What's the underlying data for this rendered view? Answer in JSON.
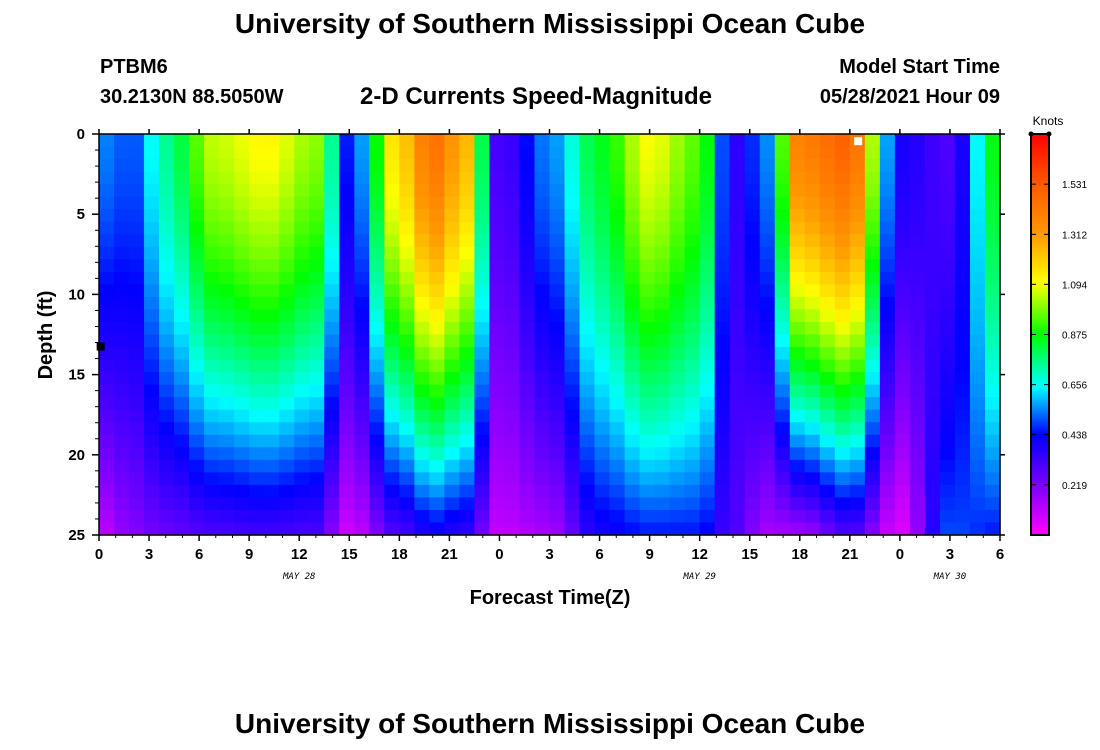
{
  "header": {
    "title": "University of Southern Mississippi Ocean Cube",
    "station": "PTBM6",
    "coords": "30.2130N  88.5050W",
    "subtitle": "2-D Currents Speed-Magnitude",
    "model_label": "Model Start Time",
    "model_time": "05/28/2021 Hour 09"
  },
  "footer": {
    "title": "University of Southern Mississippi Ocean Cube"
  },
  "chart_data": {
    "type": "heatmap",
    "title": "2-D Currents Speed-Magnitude",
    "xlabel": "Forecast Time(Z)",
    "ylabel": "Depth (ft)",
    "x_range": [
      0,
      54
    ],
    "y_range": [
      0,
      25
    ],
    "x_ticks": [
      0,
      3,
      6,
      9,
      12,
      15,
      18,
      21,
      24,
      27,
      30,
      33,
      36,
      39,
      42,
      45,
      48,
      51,
      54
    ],
    "x_tick_labels": [
      "0",
      "3",
      "6",
      "9",
      "12",
      "15",
      "18",
      "21",
      "0",
      "3",
      "6",
      "9",
      "12",
      "15",
      "18",
      "21",
      "0",
      "3",
      "6"
    ],
    "y_ticks": [
      0,
      5,
      10,
      15,
      20,
      25
    ],
    "y_tick_labels": [
      "0",
      "5",
      "10",
      "15",
      "20",
      "25"
    ],
    "date_labels": [
      {
        "x": 12,
        "label": "MAY 28"
      },
      {
        "x": 36,
        "label": "MAY 29"
      },
      {
        "x": 51,
        "label": "MAY 30"
      }
    ],
    "colorbar": {
      "label": "Knots",
      "min": 0,
      "max": 1.75,
      "tick_values": [
        0.219,
        0.438,
        0.656,
        0.875,
        1.094,
        1.312,
        1.531
      ],
      "tick_labels": [
        "0.219",
        "0.438",
        "0.656",
        "0.875",
        "1.094",
        "1.312",
        "1.531"
      ]
    },
    "grid": false,
    "cells_x": 60,
    "cells_y": 32,
    "field": [
      {
        "t": 0,
        "top": 0.55,
        "bottom": 0.1
      },
      {
        "t": 2,
        "top": 0.5,
        "bottom": 0.2
      },
      {
        "t": 4,
        "top": 0.75,
        "bottom": 0.25
      },
      {
        "t": 7,
        "top": 1.05,
        "bottom": 0.3
      },
      {
        "t": 10,
        "top": 1.12,
        "bottom": 0.32
      },
      {
        "t": 13,
        "top": 1.0,
        "bottom": 0.3
      },
      {
        "t": 15,
        "top": 0.45,
        "bottom": 0.08
      },
      {
        "t": 18,
        "top": 1.2,
        "bottom": 0.3
      },
      {
        "t": 20,
        "top": 1.45,
        "bottom": 0.4
      },
      {
        "t": 22,
        "top": 1.25,
        "bottom": 0.35
      },
      {
        "t": 24,
        "top": 0.3,
        "bottom": 0.1
      },
      {
        "t": 27,
        "top": 0.55,
        "bottom": 0.15
      },
      {
        "t": 30,
        "top": 0.85,
        "bottom": 0.4
      },
      {
        "t": 33,
        "top": 1.1,
        "bottom": 0.45
      },
      {
        "t": 36,
        "top": 0.95,
        "bottom": 0.45
      },
      {
        "t": 38,
        "top": 0.35,
        "bottom": 0.3
      },
      {
        "t": 40,
        "top": 0.55,
        "bottom": 0.15
      },
      {
        "t": 42,
        "top": 1.4,
        "bottom": 0.15
      },
      {
        "t": 45,
        "top": 1.5,
        "bottom": 0.3
      },
      {
        "t": 48,
        "top": 0.4,
        "bottom": 0.05
      },
      {
        "t": 51,
        "top": 0.3,
        "bottom": 0.5
      },
      {
        "t": 54,
        "top": 0.9,
        "bottom": 0.45
      }
    ],
    "markers": [
      {
        "x": 45.5,
        "y": 0.2,
        "color": "#ffffff"
      },
      {
        "x": 0.1,
        "y": 13.0,
        "color": "#000000"
      }
    ]
  }
}
